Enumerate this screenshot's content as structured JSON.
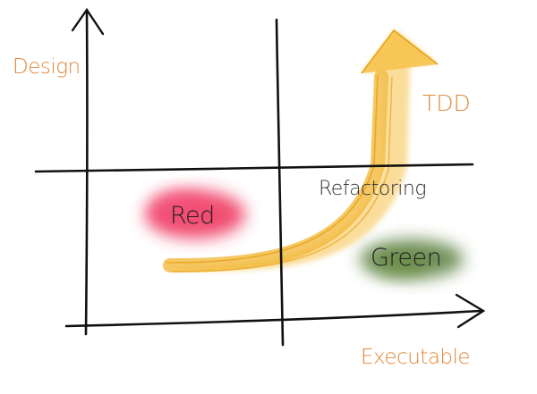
{
  "diagram": {
    "axes": {
      "y_label": "Design",
      "x_label": "Executable"
    },
    "arrow": {
      "label": "TDD",
      "color": "#f2b632",
      "edge_color": "#e9a520"
    },
    "quadrants": {
      "red": {
        "label": "Red",
        "blob_color": "#ee2e58"
      },
      "green": {
        "label": "Green",
        "blob_color": "#3f6b24"
      },
      "refactoring": {
        "label": "Refactoring"
      }
    },
    "colors": {
      "axis_label": "#e0883a",
      "ink": "#111111"
    }
  }
}
